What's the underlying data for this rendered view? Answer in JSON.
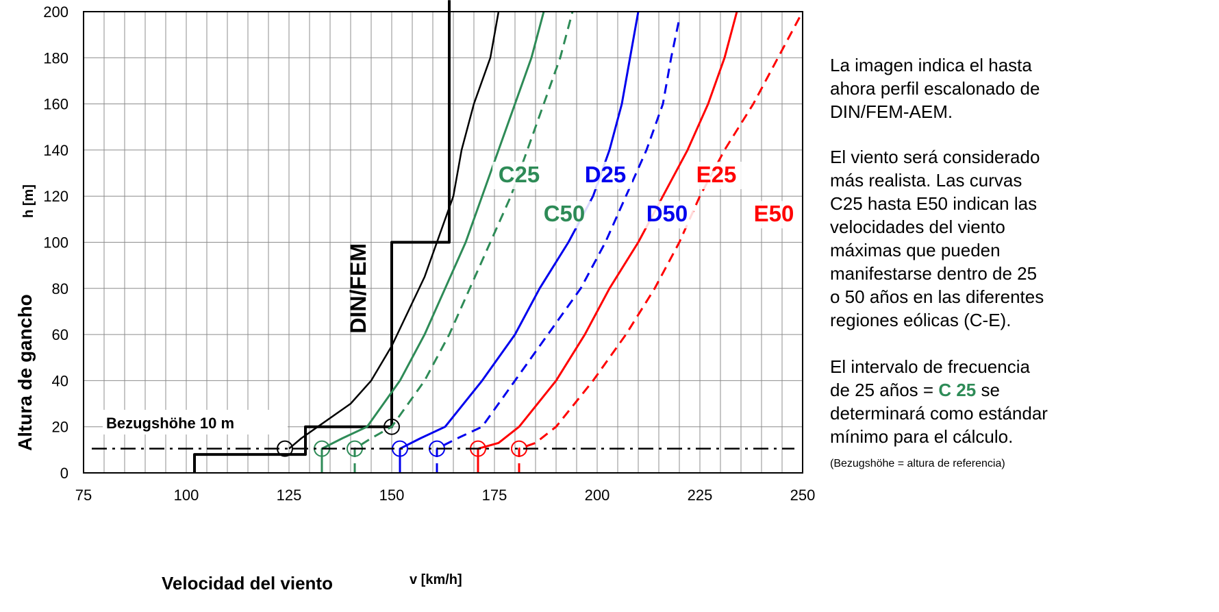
{
  "chart_data": {
    "type": "line",
    "xlabel": "Velocidad del viento",
    "xunit": "v [km/h]",
    "ylabel": "Altura de gancho",
    "yunit": "h [m]",
    "xlim": [
      75,
      250
    ],
    "ylim": [
      0,
      200
    ],
    "x_ticks": [
      "75",
      "100",
      "125",
      "150",
      "175",
      "200",
      "225",
      "250"
    ],
    "y_ticks": [
      "0",
      "20",
      "40",
      "60",
      "80",
      "100",
      "120",
      "140",
      "160",
      "180",
      "200"
    ],
    "grid": true,
    "reference_height": {
      "label": "Bezugshöhe 10 m",
      "h": 10.5
    },
    "series": [
      {
        "name": "DIN/FEM",
        "style": "step",
        "color": "#000000",
        "points": [
          [
            102,
            0
          ],
          [
            102,
            8
          ],
          [
            129,
            8
          ],
          [
            129,
            20
          ],
          [
            150,
            20
          ],
          [
            150,
            100
          ],
          [
            164,
            100
          ],
          [
            164,
            205
          ]
        ]
      },
      {
        "name": "",
        "style": "solid-thin",
        "color": "#000000",
        "points": [
          [
            125,
            10.5
          ],
          [
            128,
            15
          ],
          [
            132,
            20
          ],
          [
            140,
            30
          ],
          [
            145,
            40
          ],
          [
            150,
            55
          ],
          [
            154,
            70
          ],
          [
            158,
            85
          ],
          [
            162,
            105
          ],
          [
            165,
            120
          ],
          [
            167,
            140
          ],
          [
            170,
            160
          ],
          [
            174,
            180
          ],
          [
            176,
            200
          ]
        ]
      },
      {
        "name": "C25",
        "style": "solid",
        "color": "#2e8b57",
        "points": [
          [
            133,
            0
          ],
          [
            133,
            10.5
          ],
          [
            138,
            15
          ],
          [
            144,
            20
          ],
          [
            152,
            40
          ],
          [
            158,
            60
          ],
          [
            163,
            80
          ],
          [
            168,
            100
          ],
          [
            172,
            120
          ],
          [
            176,
            140
          ],
          [
            180,
            160
          ],
          [
            184,
            180
          ],
          [
            187,
            200
          ]
        ]
      },
      {
        "name": "C50",
        "style": "dashed",
        "color": "#2e8b57",
        "points": [
          [
            141,
            0
          ],
          [
            141,
            10.5
          ],
          [
            145,
            15
          ],
          [
            150,
            20
          ],
          [
            158,
            40
          ],
          [
            164,
            60
          ],
          [
            169,
            80
          ],
          [
            174,
            100
          ],
          [
            179,
            120
          ],
          [
            183,
            140
          ],
          [
            187,
            160
          ],
          [
            191,
            180
          ],
          [
            194,
            200
          ]
        ]
      },
      {
        "name": "D25",
        "style": "solid",
        "color": "#0000ee",
        "points": [
          [
            152,
            0
          ],
          [
            152,
            10.5
          ],
          [
            157,
            15
          ],
          [
            163,
            20
          ],
          [
            172,
            40
          ],
          [
            180,
            60
          ],
          [
            186,
            80
          ],
          [
            193,
            100
          ],
          [
            199,
            120
          ],
          [
            203,
            140
          ],
          [
            206,
            160
          ],
          [
            208,
            180
          ],
          [
            210,
            200
          ]
        ]
      },
      {
        "name": "D50",
        "style": "dashed",
        "color": "#0000ee",
        "points": [
          [
            161,
            0
          ],
          [
            161,
            10.5
          ],
          [
            166,
            15
          ],
          [
            172,
            20
          ],
          [
            180,
            40
          ],
          [
            188,
            60
          ],
          [
            196,
            80
          ],
          [
            202,
            100
          ],
          [
            207,
            120
          ],
          [
            212,
            140
          ],
          [
            216,
            160
          ],
          [
            218,
            180
          ],
          [
            220,
            197
          ]
        ]
      },
      {
        "name": "E25",
        "style": "solid",
        "color": "#ff0000",
        "points": [
          [
            171,
            0
          ],
          [
            171,
            10.5
          ],
          [
            176,
            13
          ],
          [
            181,
            20
          ],
          [
            190,
            40
          ],
          [
            197,
            60
          ],
          [
            203,
            80
          ],
          [
            210,
            100
          ],
          [
            216,
            120
          ],
          [
            222,
            140
          ],
          [
            227,
            160
          ],
          [
            231,
            180
          ],
          [
            234,
            200
          ]
        ]
      },
      {
        "name": "E50",
        "style": "dashed",
        "color": "#ff0000",
        "points": [
          [
            181,
            0
          ],
          [
            181,
            10.5
          ],
          [
            185,
            13
          ],
          [
            190,
            20
          ],
          [
            199,
            40
          ],
          [
            207,
            60
          ],
          [
            214,
            80
          ],
          [
            220,
            100
          ],
          [
            225,
            120
          ],
          [
            231,
            140
          ],
          [
            238,
            160
          ],
          [
            244,
            180
          ],
          [
            250,
            200
          ]
        ]
      }
    ],
    "labels": [
      {
        "text": "C25",
        "x": 181,
        "y": 126,
        "color": "#2e8b57"
      },
      {
        "text": "C50",
        "x": 192,
        "y": 109,
        "color": "#2e8b57"
      },
      {
        "text": "D25",
        "x": 202,
        "y": 126,
        "color": "#0000ee"
      },
      {
        "text": "D50",
        "x": 217,
        "y": 109,
        "color": "#0000ee"
      },
      {
        "text": "E25",
        "x": 229,
        "y": 126,
        "color": "#ff0000"
      },
      {
        "text": "E50",
        "x": 243,
        "y": 109,
        "color": "#ff0000"
      },
      {
        "text": "DIN/FEM",
        "x": 142,
        "y": 80,
        "color": "#000000",
        "rotated": true
      }
    ],
    "markers": [
      {
        "x": 124,
        "h": 10.5,
        "color": "#000000"
      },
      {
        "x": 133,
        "h": 10.5,
        "color": "#2e8b57"
      },
      {
        "x": 141,
        "h": 10.5,
        "color": "#2e8b57"
      },
      {
        "x": 152,
        "h": 10.5,
        "color": "#0000ee"
      },
      {
        "x": 161,
        "h": 10.5,
        "color": "#0000ee"
      },
      {
        "x": 171,
        "h": 10.5,
        "color": "#ff0000"
      },
      {
        "x": 181,
        "h": 10.5,
        "color": "#ff0000"
      },
      {
        "x": 150,
        "h": 20,
        "color": "#000000"
      }
    ]
  },
  "side_text": {
    "paragraph1": [
      "La imagen indica el hasta",
      "ahora perfil escalonado de",
      "DIN/FEM-AEM."
    ],
    "paragraph2": [
      "El viento será considerado",
      "más realista. Las curvas",
      "C25 hasta E50 indican las",
      "velocidades del viento",
      "máximas que pueden",
      "manifestarse dentro de 25",
      "o 50 años en las diferentes",
      "regiones eólicas (C-E)."
    ],
    "paragraph3_line1": "El intervalo de frecuencia",
    "paragraph3_line2_prefix": "de 25 años = ",
    "paragraph3_highlight": "C 25",
    "paragraph3_line2_suffix": " se",
    "paragraph3_line3": "determinará como estándar",
    "paragraph3_line4": "mínimo para el cálculo.",
    "footnote": "(Bezugshöhe = altura de referencia)"
  }
}
